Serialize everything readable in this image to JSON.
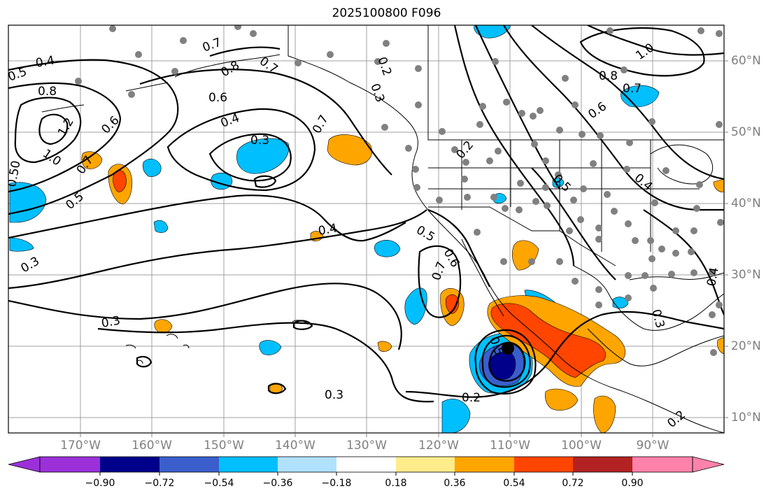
{
  "title": "2025100800 F096",
  "longitude_labels": [
    "170°W",
    "160°W",
    "150°W",
    "140°W",
    "130°W",
    "120°W",
    "110°W",
    "100°W",
    "90°W"
  ],
  "latitude_labels": [
    "60°N",
    "50°N",
    "40°N",
    "30°N",
    "20°N",
    "10°N"
  ],
  "colorbar": {
    "ticks": [
      "−0.90",
      "−0.72",
      "−0.54",
      "−0.36",
      "−0.18",
      "0.18",
      "0.36",
      "0.54",
      "0.72",
      "0.90"
    ],
    "colors": [
      "#9b30d9",
      "#00008b",
      "#3a5fcd",
      "#00bfff",
      "#b0e2ff",
      "#ffffff",
      "#ffec8b",
      "#ffa500",
      "#ff4500",
      "#b22222",
      "#ff82ab"
    ]
  },
  "contour_labels": [
    {
      "text": "0.4"
    },
    {
      "text": "0.5"
    },
    {
      "text": "0.8"
    },
    {
      "text": "1.2"
    },
    {
      "text": "1.0"
    },
    {
      "text": "0.6"
    },
    {
      "text": "0.7"
    },
    {
      "text": "0.5"
    },
    {
      "text": "0.50"
    },
    {
      "text": "0.7"
    },
    {
      "text": "0.8"
    },
    {
      "text": "0.7"
    },
    {
      "text": "0.6"
    },
    {
      "text": "0.4"
    },
    {
      "text": "0.3"
    },
    {
      "text": "0.7"
    },
    {
      "text": "0.2"
    },
    {
      "text": "0.3"
    },
    {
      "text": "0.2"
    },
    {
      "text": "1.0"
    },
    {
      "text": "0.8"
    },
    {
      "text": "0.7"
    },
    {
      "text": "0.6"
    },
    {
      "text": "0.5"
    },
    {
      "text": "0.4"
    },
    {
      "text": "0.4"
    },
    {
      "text": "0.5"
    },
    {
      "text": "0.6"
    },
    {
      "text": "0.7"
    },
    {
      "text": "0.3"
    },
    {
      "text": "0.3"
    },
    {
      "text": "0.5"
    },
    {
      "text": "0.3"
    },
    {
      "text": "0.2"
    },
    {
      "text": "0.3"
    },
    {
      "text": "0.4"
    },
    {
      "text": "0.2"
    }
  ]
}
